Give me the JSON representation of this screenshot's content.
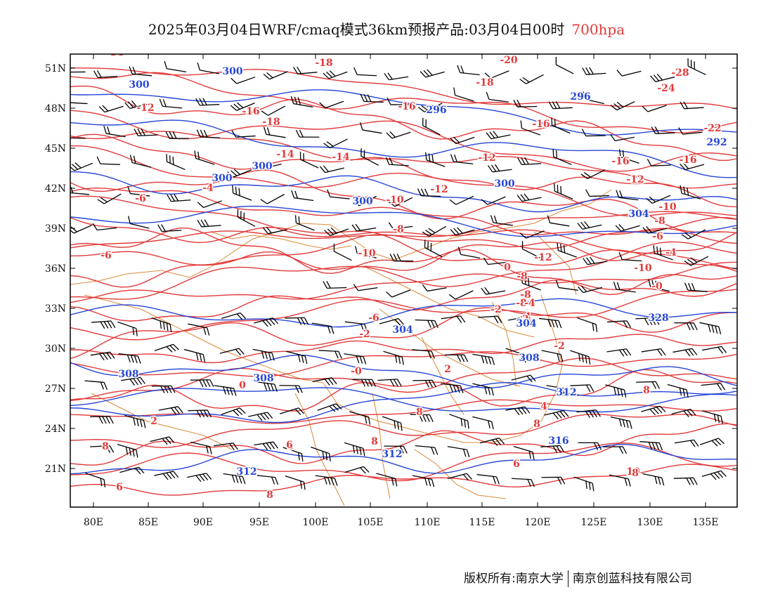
{
  "title": {
    "main": "2025年03月04日WRF/cmaq模式36km预报产品:03月04日00时",
    "level": "700hpa"
  },
  "colors": {
    "temperature": "#e23a3a",
    "height": "#2646d6",
    "boundary": "#d98a3a",
    "frame": "#000000"
  },
  "axes": {
    "lat_labels": [
      "51N",
      "48N",
      "45N",
      "42N",
      "39N",
      "36N",
      "33N",
      "30N",
      "27N",
      "24N",
      "21N"
    ],
    "lon_labels": [
      "80E",
      "85E",
      "90E",
      "95E",
      "100E",
      "105E",
      "110E",
      "115E",
      "120E",
      "125E",
      "130E",
      "135E"
    ]
  },
  "contour_labels": {
    "temperature": [
      "-14",
      "-18",
      "-20",
      "-18",
      "-28",
      "-24",
      "-12",
      "-16",
      "-16",
      "-16",
      "-18",
      "-22",
      "-16",
      "-14",
      "-12",
      "-14",
      "-16",
      "-10",
      "-8",
      "-12",
      "-4",
      "-12",
      "-6",
      "-10",
      "-12",
      "-10",
      "-8",
      "-6",
      "-8",
      "-6",
      "-4",
      "-10",
      "-2",
      "-8",
      "-8",
      "-6",
      "-4",
      "-0",
      "-2",
      "0",
      "-4",
      "-2",
      "2",
      "-0",
      "2",
      "0",
      "2",
      "8",
      "8",
      "4",
      "8",
      "6",
      "8",
      "6",
      "6",
      "8",
      "8",
      "10",
      "6",
      "8"
    ],
    "height": [
      "300",
      "300",
      "296",
      "296",
      "292",
      "300",
      "300",
      "300",
      "300",
      "304",
      "304",
      "304",
      "308",
      "308",
      "328",
      "308",
      "312",
      "312",
      "316",
      "312"
    ]
  },
  "footer": {
    "left": "版权所有:南京大学",
    "right": "南京创蓝科技有限公司"
  }
}
